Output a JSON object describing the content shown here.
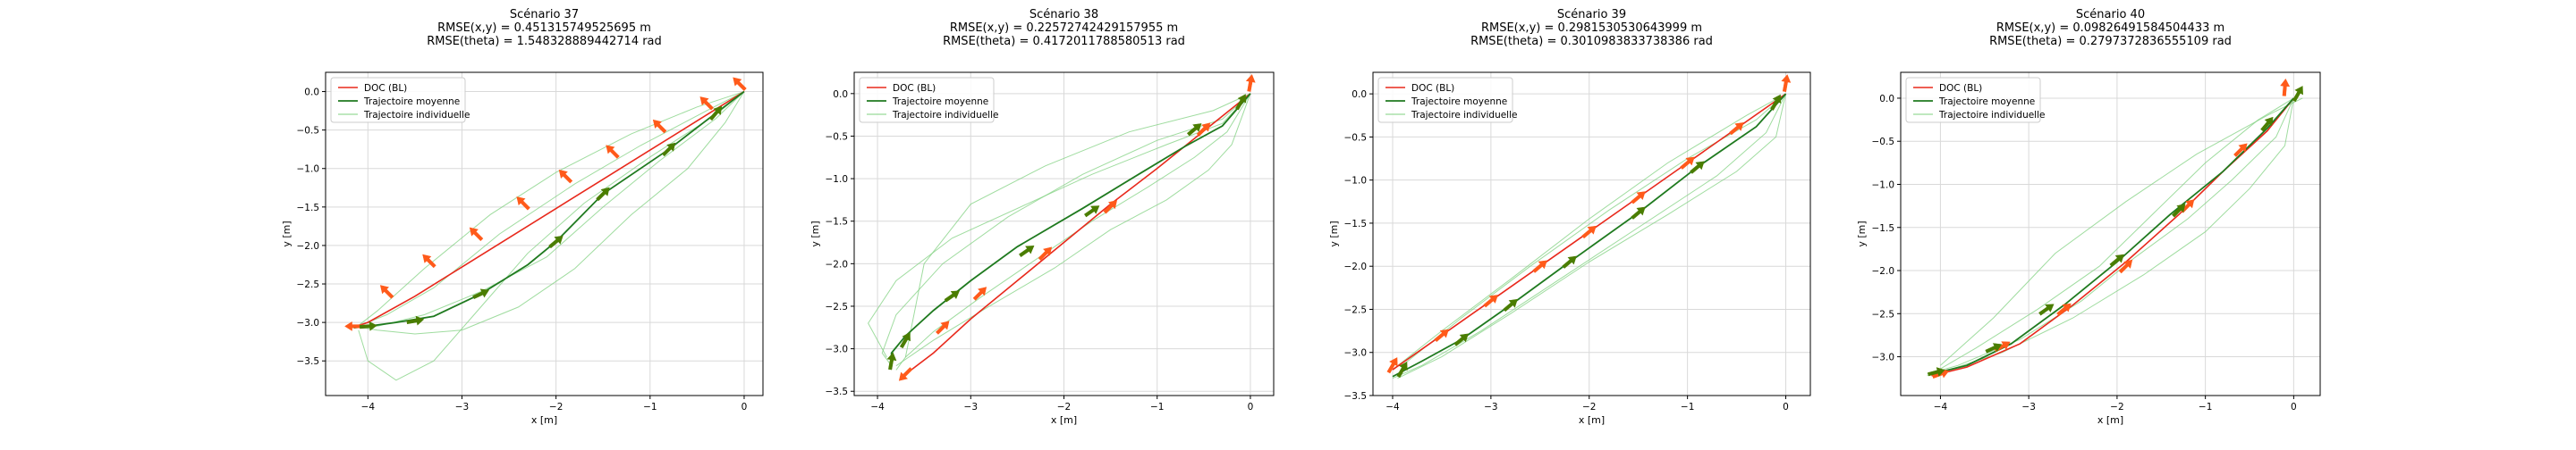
{
  "figure": {
    "background": "#ffffff"
  },
  "colors": {
    "doc": "#e8291c",
    "mean": "#1f7a1f",
    "individual": "#7fd07f",
    "doc_arrow": "#ff5a1a",
    "mean_arrow": "#4a7d00",
    "grid": "#d9d9d9"
  },
  "chart_data": [
    {
      "type": "line",
      "title": [
        "Scénario 37",
        "RMSE(x,y) = 0.451315749525695 m",
        "RMSE(theta) = 1.548328889442714 rad"
      ],
      "xlabel": "x [m]",
      "ylabel": "y [m]",
      "xlim": [
        -4.45,
        0.2
      ],
      "ylim": [
        -3.95,
        0.25
      ],
      "xticks": [
        -4,
        -3,
        -2,
        -1,
        0
      ],
      "yticks": [
        0.0,
        -0.5,
        -1.0,
        -1.5,
        -2.0,
        -2.5,
        -3.0,
        -3.5
      ],
      "grid": true,
      "legend_position": "upper left",
      "legend": [
        "DOC (BL)",
        "Trajectoire moyenne",
        "Trajectoire individuelle"
      ],
      "series": [
        {
          "name": "DOC (BL)",
          "x": [
            0.0,
            -0.5,
            -1.0,
            -1.5,
            -2.0,
            -2.5,
            -3.0,
            -3.5,
            -4.0,
            -4.15
          ],
          "y": [
            0.0,
            -0.38,
            -0.76,
            -1.14,
            -1.52,
            -1.9,
            -2.28,
            -2.66,
            -3.0,
            -3.06
          ]
        },
        {
          "name": "Trajectoire moyenne",
          "x": [
            0.0,
            -0.3,
            -0.8,
            -1.5,
            -2.0,
            -2.3,
            -2.8,
            -3.3,
            -3.7,
            -4.0,
            -4.15
          ],
          "y": [
            0.0,
            -0.28,
            -0.75,
            -1.33,
            -1.95,
            -2.25,
            -2.63,
            -2.92,
            -3.0,
            -3.05,
            -3.07
          ]
        }
      ],
      "individual": [
        {
          "x": [
            0.0,
            -0.4,
            -1.1,
            -1.8,
            -2.6,
            -3.3,
            -3.8,
            -4.1
          ],
          "y": [
            0.0,
            -0.25,
            -0.7,
            -1.2,
            -1.85,
            -2.55,
            -2.9,
            -3.05
          ]
        },
        {
          "x": [
            0.0,
            -0.3,
            -0.9,
            -1.5,
            -2.1,
            -2.8,
            -3.4,
            -3.9,
            -4.1
          ],
          "y": [
            0.0,
            -0.35,
            -0.9,
            -1.5,
            -2.15,
            -2.6,
            -2.9,
            -3.05,
            -3.06
          ]
        },
        {
          "x": [
            0.0,
            -0.2,
            -0.6,
            -1.2,
            -1.8,
            -2.4,
            -3.0,
            -3.5,
            -3.9,
            -4.1
          ],
          "y": [
            0.0,
            -0.4,
            -1.0,
            -1.6,
            -2.3,
            -2.8,
            -3.1,
            -3.15,
            -3.1,
            -3.06
          ]
        },
        {
          "x": [
            0.0,
            -0.3,
            -1.0,
            -1.7,
            -2.3,
            -2.8,
            -3.3,
            -3.7,
            -4.0,
            -4.1
          ],
          "y": [
            0.0,
            -0.3,
            -0.85,
            -1.45,
            -2.1,
            -2.8,
            -3.5,
            -3.75,
            -3.5,
            -3.1
          ]
        },
        {
          "x": [
            0.0,
            -0.5,
            -1.2,
            -2.0,
            -2.7,
            -3.4,
            -3.9,
            -4.1
          ],
          "y": [
            0.0,
            -0.2,
            -0.55,
            -1.05,
            -1.6,
            -2.3,
            -2.85,
            -3.04
          ]
        }
      ],
      "doc_arrows": [
        {
          "x": -0.05,
          "y": 0.1,
          "theta": 135
        },
        {
          "x": -0.4,
          "y": -0.15,
          "theta": 135
        },
        {
          "x": -0.9,
          "y": -0.45,
          "theta": 135
        },
        {
          "x": -1.4,
          "y": -0.78,
          "theta": 135
        },
        {
          "x": -1.9,
          "y": -1.1,
          "theta": 135
        },
        {
          "x": -2.35,
          "y": -1.45,
          "theta": 135
        },
        {
          "x": -2.85,
          "y": -1.85,
          "theta": 135
        },
        {
          "x": -3.35,
          "y": -2.2,
          "theta": 135
        },
        {
          "x": -3.8,
          "y": -2.6,
          "theta": 135
        },
        {
          "x": -4.15,
          "y": -3.05,
          "theta": 180
        }
      ],
      "mean_arrows": [
        {
          "x": -0.3,
          "y": -0.28,
          "theta": 50
        },
        {
          "x": -0.8,
          "y": -0.75,
          "theta": 45
        },
        {
          "x": -1.5,
          "y": -1.33,
          "theta": 45
        },
        {
          "x": -2.0,
          "y": -1.95,
          "theta": 40
        },
        {
          "x": -2.8,
          "y": -2.63,
          "theta": 25
        },
        {
          "x": -3.5,
          "y": -2.98,
          "theta": 10
        },
        {
          "x": -4.0,
          "y": -3.05,
          "theta": 5
        }
      ]
    },
    {
      "type": "line",
      "title": [
        "Scénario 38",
        "RMSE(x,y) = 0.22572742429157955 m",
        "RMSE(theta) = 0.4172011788580513 rad"
      ],
      "xlabel": "x [m]",
      "ylabel": "y [m]",
      "xlim": [
        -4.25,
        0.25
      ],
      "ylim": [
        -3.55,
        0.25
      ],
      "xticks": [
        -4,
        -3,
        -2,
        -1,
        0
      ],
      "yticks": [
        0.0,
        -0.5,
        -1.0,
        -1.5,
        -2.0,
        -2.5,
        -3.0,
        -3.5
      ],
      "grid": true,
      "legend_position": "upper left",
      "legend": [
        "DOC (BL)",
        "Trajectoire moyenne",
        "Trajectoire individuelle"
      ],
      "series": [
        {
          "name": "DOC (BL)",
          "x": [
            0.0,
            -0.5,
            -1.0,
            -1.5,
            -2.0,
            -2.5,
            -3.0,
            -3.4,
            -3.7
          ],
          "y": [
            0.0,
            -0.44,
            -0.88,
            -1.3,
            -1.75,
            -2.2,
            -2.65,
            -3.05,
            -3.3
          ]
        },
        {
          "name": "Trajectoire moyenne",
          "x": [
            0.0,
            -0.3,
            -0.7,
            -1.2,
            -1.8,
            -2.5,
            -3.0,
            -3.4,
            -3.7,
            -3.85,
            -3.85
          ],
          "y": [
            0.0,
            -0.38,
            -0.62,
            -0.95,
            -1.35,
            -1.8,
            -2.2,
            -2.55,
            -2.85,
            -3.05,
            -3.2
          ]
        }
      ],
      "individual": [
        {
          "x": [
            0.0,
            -0.3,
            -1.0,
            -1.8,
            -2.6,
            -3.3,
            -3.8,
            -3.95,
            -3.85
          ],
          "y": [
            0.0,
            -0.3,
            -0.55,
            -0.95,
            -1.45,
            -2.0,
            -2.6,
            -3.05,
            -3.2
          ]
        },
        {
          "x": [
            0.0,
            -0.3,
            -0.9,
            -1.7,
            -2.4,
            -3.2,
            -3.8,
            -4.1,
            -3.9
          ],
          "y": [
            0.0,
            -0.35,
            -0.6,
            -0.95,
            -1.3,
            -1.7,
            -2.2,
            -2.7,
            -3.1
          ]
        },
        {
          "x": [
            0.0,
            -0.25,
            -0.6,
            -1.1,
            -1.7,
            -2.3,
            -2.9,
            -3.4,
            -3.7,
            -3.8
          ],
          "y": [
            0.0,
            -0.45,
            -0.75,
            -1.1,
            -1.5,
            -1.95,
            -2.4,
            -2.8,
            -3.1,
            -3.25
          ]
        },
        {
          "x": [
            0.0,
            -0.2,
            -0.45,
            -0.9,
            -1.5,
            -2.1,
            -2.8,
            -3.4,
            -3.8
          ],
          "y": [
            0.0,
            -0.6,
            -0.9,
            -1.25,
            -1.6,
            -2.05,
            -2.5,
            -2.9,
            -3.2
          ]
        },
        {
          "x": [
            0.0,
            -0.4,
            -1.3,
            -2.2,
            -3.0,
            -3.5,
            -3.7
          ],
          "y": [
            0.0,
            -0.2,
            -0.45,
            -0.85,
            -1.3,
            -2.0,
            -3.1
          ]
        }
      ],
      "doc_arrows": [
        {
          "x": 0.0,
          "y": 0.12,
          "theta": 80
        },
        {
          "x": -0.5,
          "y": -0.42,
          "theta": 45
        },
        {
          "x": -1.5,
          "y": -1.33,
          "theta": 45
        },
        {
          "x": -2.2,
          "y": -1.88,
          "theta": 45
        },
        {
          "x": -2.9,
          "y": -2.35,
          "theta": 45
        },
        {
          "x": -3.3,
          "y": -2.75,
          "theta": 45
        },
        {
          "x": -3.7,
          "y": -3.3,
          "theta": 225
        }
      ],
      "mean_arrows": [
        {
          "x": -0.1,
          "y": -0.1,
          "theta": 60
        },
        {
          "x": -0.6,
          "y": -0.42,
          "theta": 40
        },
        {
          "x": -1.7,
          "y": -1.38,
          "theta": 35
        },
        {
          "x": -2.4,
          "y": -1.85,
          "theta": 35
        },
        {
          "x": -3.2,
          "y": -2.38,
          "theta": 35
        },
        {
          "x": -3.7,
          "y": -2.9,
          "theta": 60
        },
        {
          "x": -3.85,
          "y": -3.15,
          "theta": 80
        }
      ]
    },
    {
      "type": "line",
      "title": [
        "Scénario 39",
        "RMSE(x,y) = 0.2981530530643999 m",
        "RMSE(theta) = 0.3010983833738386 rad"
      ],
      "xlabel": "x [m]",
      "ylabel": "y [m]",
      "xlim": [
        -4.2,
        0.25
      ],
      "ylim": [
        -3.5,
        0.25
      ],
      "xticks": [
        -4,
        -3,
        -2,
        -1,
        0
      ],
      "yticks": [
        0.0,
        -0.5,
        -1.0,
        -1.5,
        -2.0,
        -2.5,
        -3.0,
        -3.5
      ],
      "grid": true,
      "legend_position": "upper left",
      "legend": [
        "DOC (BL)",
        "Trajectoire moyenne",
        "Trajectoire individuelle"
      ],
      "series": [
        {
          "name": "DOC (BL)",
          "x": [
            0.0,
            -0.5,
            -1.0,
            -1.5,
            -2.0,
            -2.5,
            -3.0,
            -3.5,
            -4.0
          ],
          "y": [
            0.0,
            -0.4,
            -0.8,
            -1.2,
            -1.6,
            -2.0,
            -2.4,
            -2.8,
            -3.2
          ]
        },
        {
          "name": "Trajectoire moyenne",
          "x": [
            0.0,
            -0.3,
            -0.9,
            -1.5,
            -2.2,
            -2.8,
            -3.3,
            -3.7,
            -4.0
          ],
          "y": [
            0.0,
            -0.38,
            -0.85,
            -1.38,
            -1.95,
            -2.45,
            -2.85,
            -3.1,
            -3.28
          ]
        }
      ],
      "individual": [
        {
          "x": [
            0.0,
            -0.4,
            -1.2,
            -2.0,
            -2.8,
            -3.5,
            -4.0
          ],
          "y": [
            0.0,
            -0.25,
            -0.8,
            -1.45,
            -2.15,
            -2.75,
            -3.2
          ]
        },
        {
          "x": [
            0.0,
            -0.2,
            -0.7,
            -1.5,
            -2.3,
            -3.1,
            -3.7,
            -4.0
          ],
          "y": [
            0.0,
            -0.45,
            -0.95,
            -1.55,
            -2.15,
            -2.75,
            -3.15,
            -3.3
          ]
        },
        {
          "x": [
            0.0,
            -0.1,
            -0.5,
            -1.2,
            -2.0,
            -2.8,
            -3.5,
            -3.95
          ],
          "y": [
            0.0,
            -0.5,
            -0.9,
            -1.4,
            -1.95,
            -2.55,
            -3.05,
            -3.3
          ]
        },
        {
          "x": [
            0.0,
            -0.3,
            -1.0,
            -1.8,
            -2.6,
            -3.3,
            -3.9
          ],
          "y": [
            0.0,
            -0.3,
            -0.75,
            -1.35,
            -2.0,
            -2.6,
            -3.15
          ]
        }
      ],
      "doc_arrows": [
        {
          "x": 0.0,
          "y": 0.12,
          "theta": 80
        },
        {
          "x": -0.5,
          "y": -0.4,
          "theta": 40
        },
        {
          "x": -1.0,
          "y": -0.8,
          "theta": 40
        },
        {
          "x": -1.5,
          "y": -1.2,
          "theta": 40
        },
        {
          "x": -2.0,
          "y": -1.6,
          "theta": 40
        },
        {
          "x": -2.5,
          "y": -2.0,
          "theta": 40
        },
        {
          "x": -3.0,
          "y": -2.4,
          "theta": 40
        },
        {
          "x": -3.5,
          "y": -2.8,
          "theta": 40
        },
        {
          "x": -4.0,
          "y": -3.15,
          "theta": 60
        }
      ],
      "mean_arrows": [
        {
          "x": -0.1,
          "y": -0.1,
          "theta": 60
        },
        {
          "x": -0.9,
          "y": -0.85,
          "theta": 40
        },
        {
          "x": -1.5,
          "y": -1.38,
          "theta": 40
        },
        {
          "x": -2.2,
          "y": -1.95,
          "theta": 40
        },
        {
          "x": -2.8,
          "y": -2.45,
          "theta": 40
        },
        {
          "x": -3.3,
          "y": -2.85,
          "theta": 40
        },
        {
          "x": -3.9,
          "y": -3.2,
          "theta": 60
        }
      ]
    },
    {
      "type": "line",
      "title": [
        "Scénario 40",
        "RMSE(x,y) = 0.09826491584504433 m",
        "RMSE(theta) = 0.2797372836555109 rad"
      ],
      "xlabel": "x [m]",
      "ylabel": "y [m]",
      "xlim": [
        -4.45,
        0.3
      ],
      "ylim": [
        -3.45,
        0.3
      ],
      "xticks": [
        -4,
        -3,
        -2,
        -1,
        0
      ],
      "yticks": [
        0.0,
        -0.5,
        -1.0,
        -1.5,
        -2.0,
        -2.5,
        -3.0
      ],
      "grid": true,
      "legend_position": "upper left",
      "legend": [
        "DOC (BL)",
        "Trajectoire moyenne",
        "Trajectoire individuelle"
      ],
      "series": [
        {
          "name": "DOC (BL)",
          "x": [
            0.0,
            -0.3,
            -0.8,
            -1.3,
            -1.9,
            -2.5,
            -3.1,
            -3.7,
            -4.1
          ],
          "y": [
            0.0,
            -0.38,
            -0.85,
            -1.35,
            -1.9,
            -2.4,
            -2.85,
            -3.12,
            -3.22
          ]
        },
        {
          "name": "Trajectoire moyenne",
          "x": [
            0.0,
            -0.3,
            -0.8,
            -1.4,
            -2.0,
            -2.6,
            -3.2,
            -3.7,
            -4.1
          ],
          "y": [
            0.0,
            -0.35,
            -0.85,
            -1.35,
            -1.9,
            -2.4,
            -2.85,
            -3.1,
            -3.2
          ]
        }
      ],
      "individual": [
        {
          "x": [
            0.0,
            -0.4,
            -1.0,
            -1.6,
            -2.2,
            -2.9,
            -3.6,
            -4.1
          ],
          "y": [
            0.0,
            -0.25,
            -0.75,
            -1.35,
            -1.95,
            -2.45,
            -2.9,
            -3.2
          ]
        },
        {
          "x": [
            0.0,
            -0.2,
            -0.7,
            -1.2,
            -1.8,
            -2.4,
            -3.1,
            -3.8,
            -4.15
          ],
          "y": [
            0.0,
            -0.45,
            -0.95,
            -1.4,
            -1.85,
            -2.35,
            -2.8,
            -3.1,
            -3.2
          ]
        },
        {
          "x": [
            0.1,
            -0.3,
            -1.1,
            -1.9,
            -2.7,
            -3.4,
            -4.0
          ],
          "y": [
            0.0,
            -0.2,
            -0.65,
            -1.2,
            -1.8,
            -2.55,
            -3.1
          ]
        },
        {
          "x": [
            0.0,
            -0.1,
            -0.5,
            -1.0,
            -1.7,
            -2.5,
            -3.3,
            -3.9,
            -4.15
          ],
          "y": [
            0.0,
            -0.55,
            -1.05,
            -1.55,
            -2.05,
            -2.55,
            -2.95,
            -3.15,
            -3.22
          ]
        }
      ],
      "doc_arrows": [
        {
          "x": -0.1,
          "y": 0.12,
          "theta": 85
        },
        {
          "x": -0.6,
          "y": -0.6,
          "theta": 45
        },
        {
          "x": -1.2,
          "y": -1.25,
          "theta": 45
        },
        {
          "x": -1.9,
          "y": -1.95,
          "theta": 45
        },
        {
          "x": -2.6,
          "y": -2.45,
          "theta": 40
        },
        {
          "x": -3.3,
          "y": -2.88,
          "theta": 30
        },
        {
          "x": -4.0,
          "y": -3.2,
          "theta": 20
        }
      ],
      "mean_arrows": [
        {
          "x": 0.05,
          "y": 0.05,
          "theta": 60
        },
        {
          "x": -0.3,
          "y": -0.3,
          "theta": 50
        },
        {
          "x": -1.3,
          "y": -1.3,
          "theta": 45
        },
        {
          "x": -2.0,
          "y": -1.88,
          "theta": 40
        },
        {
          "x": -2.8,
          "y": -2.45,
          "theta": 35
        },
        {
          "x": -3.4,
          "y": -2.9,
          "theta": 25
        },
        {
          "x": -4.05,
          "y": -3.18,
          "theta": 15
        }
      ]
    }
  ]
}
